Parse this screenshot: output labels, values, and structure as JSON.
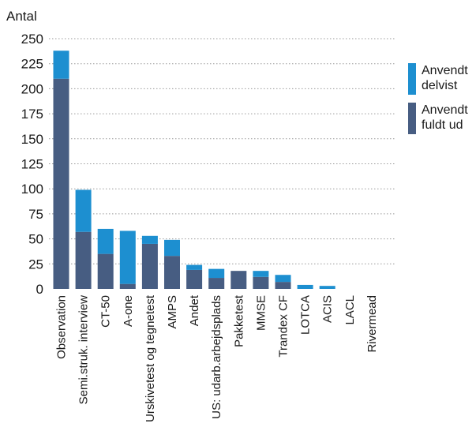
{
  "chart_data": {
    "type": "bar",
    "stacked": true,
    "ylabel": "Antal",
    "ylim": [
      0,
      250
    ],
    "yticks": [
      0,
      25,
      50,
      75,
      100,
      125,
      150,
      175,
      200,
      225,
      250
    ],
    "grid": true,
    "legend_position": "right",
    "categories": [
      "Observation",
      "Semi.struk. interview",
      "CT-50",
      "A-one",
      "Urskivetest og tegnetest",
      "AMPS",
      "Andet",
      "US: udarb.arbejdsplads",
      "Pakketest",
      "MMSE",
      "Trandex CF",
      "LOTCA",
      "ACIS",
      "LACL",
      "Rivermead"
    ],
    "series": [
      {
        "name": "Anvendt fuldt ud",
        "color": "#475d82",
        "values": [
          210,
          57,
          35,
          5,
          45,
          33,
          19,
          11,
          18,
          12,
          7,
          0,
          0,
          0,
          0
        ]
      },
      {
        "name": "Anvendt delvist",
        "color": "#1d8fd0",
        "values": [
          28,
          42,
          25,
          53,
          8,
          16,
          5,
          9,
          0,
          6,
          7,
          4,
          3,
          0,
          0
        ]
      }
    ],
    "legend": [
      {
        "lines": [
          "Anvendt",
          "delvist"
        ],
        "color": "#1d8fd0"
      },
      {
        "lines": [
          "Anvendt",
          "fuldt ud"
        ],
        "color": "#475d82"
      }
    ]
  }
}
